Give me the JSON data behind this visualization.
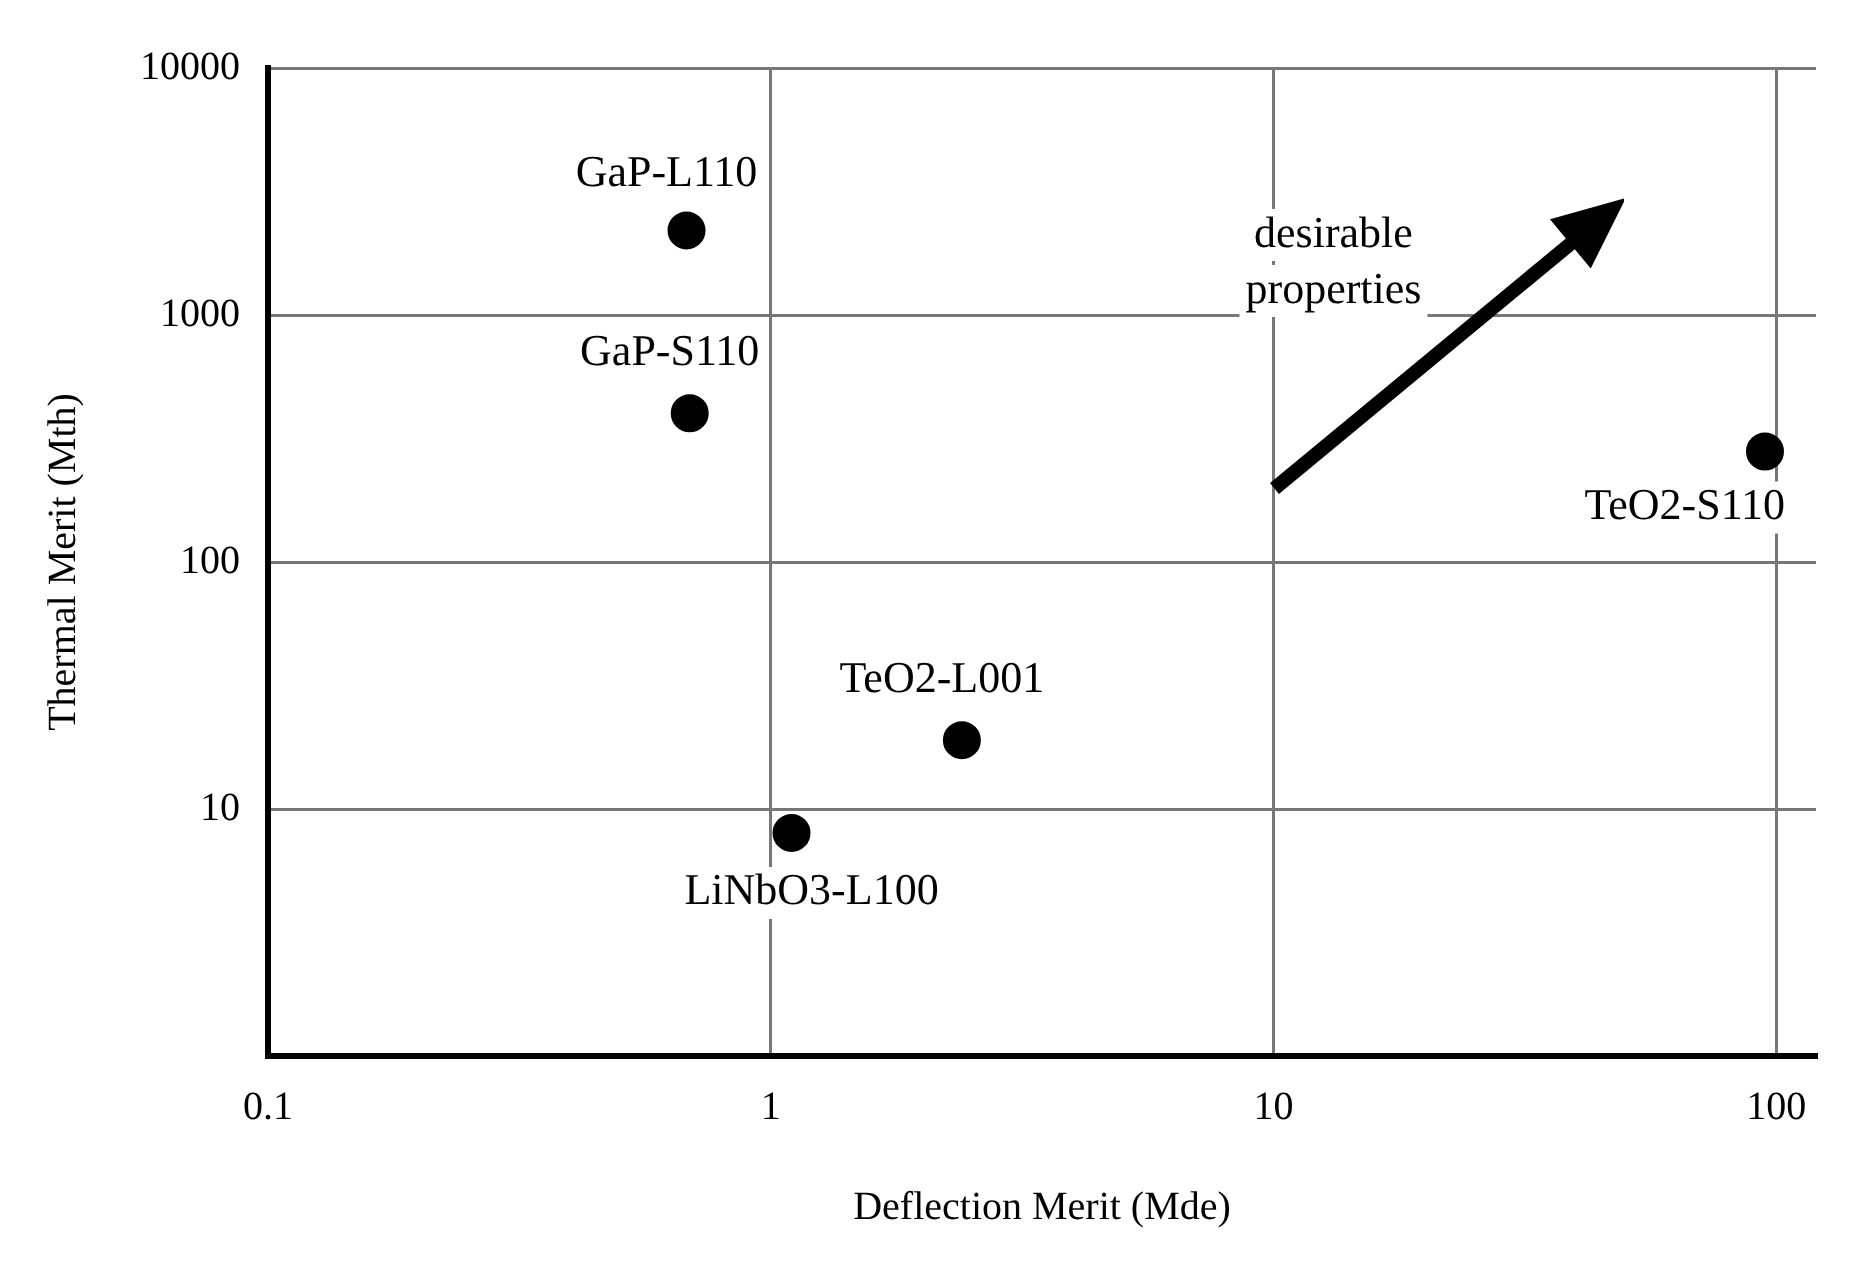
{
  "chart_data": {
    "type": "scatter",
    "xlabel": "Deflection Merit (Mde)",
    "ylabel": "Thermal Merit (Mth)",
    "x": [
      0.68,
      0.69,
      95,
      2.4,
      1.1
    ],
    "values": [
      2200,
      400,
      280,
      19,
      8
    ],
    "color": "#000000",
    "marker": "circle",
    "log": "xy",
    "grid": true,
    "legend": false,
    "xlim": [
      0.1,
      120
    ],
    "xticks": [
      0.1,
      1,
      10,
      100
    ],
    "ylim": [
      1,
      10000
    ],
    "yticks": [
      10,
      100,
      1000,
      10000
    ],
    "annotations": [
      {
        "text": "GaP-L110",
        "x": 0.68,
        "y": 2200
      },
      {
        "text": "GaP-S110",
        "x": 0.69,
        "y": 400
      },
      {
        "text": "TeO2-S110",
        "x": 95,
        "y": 280
      },
      {
        "text": "TeO2-L001",
        "x": 2.4,
        "y": 19
      },
      {
        "text": "LiNbO3-L100",
        "x": 1.1,
        "y": 8
      },
      "desirable properties"
    ]
  }
}
